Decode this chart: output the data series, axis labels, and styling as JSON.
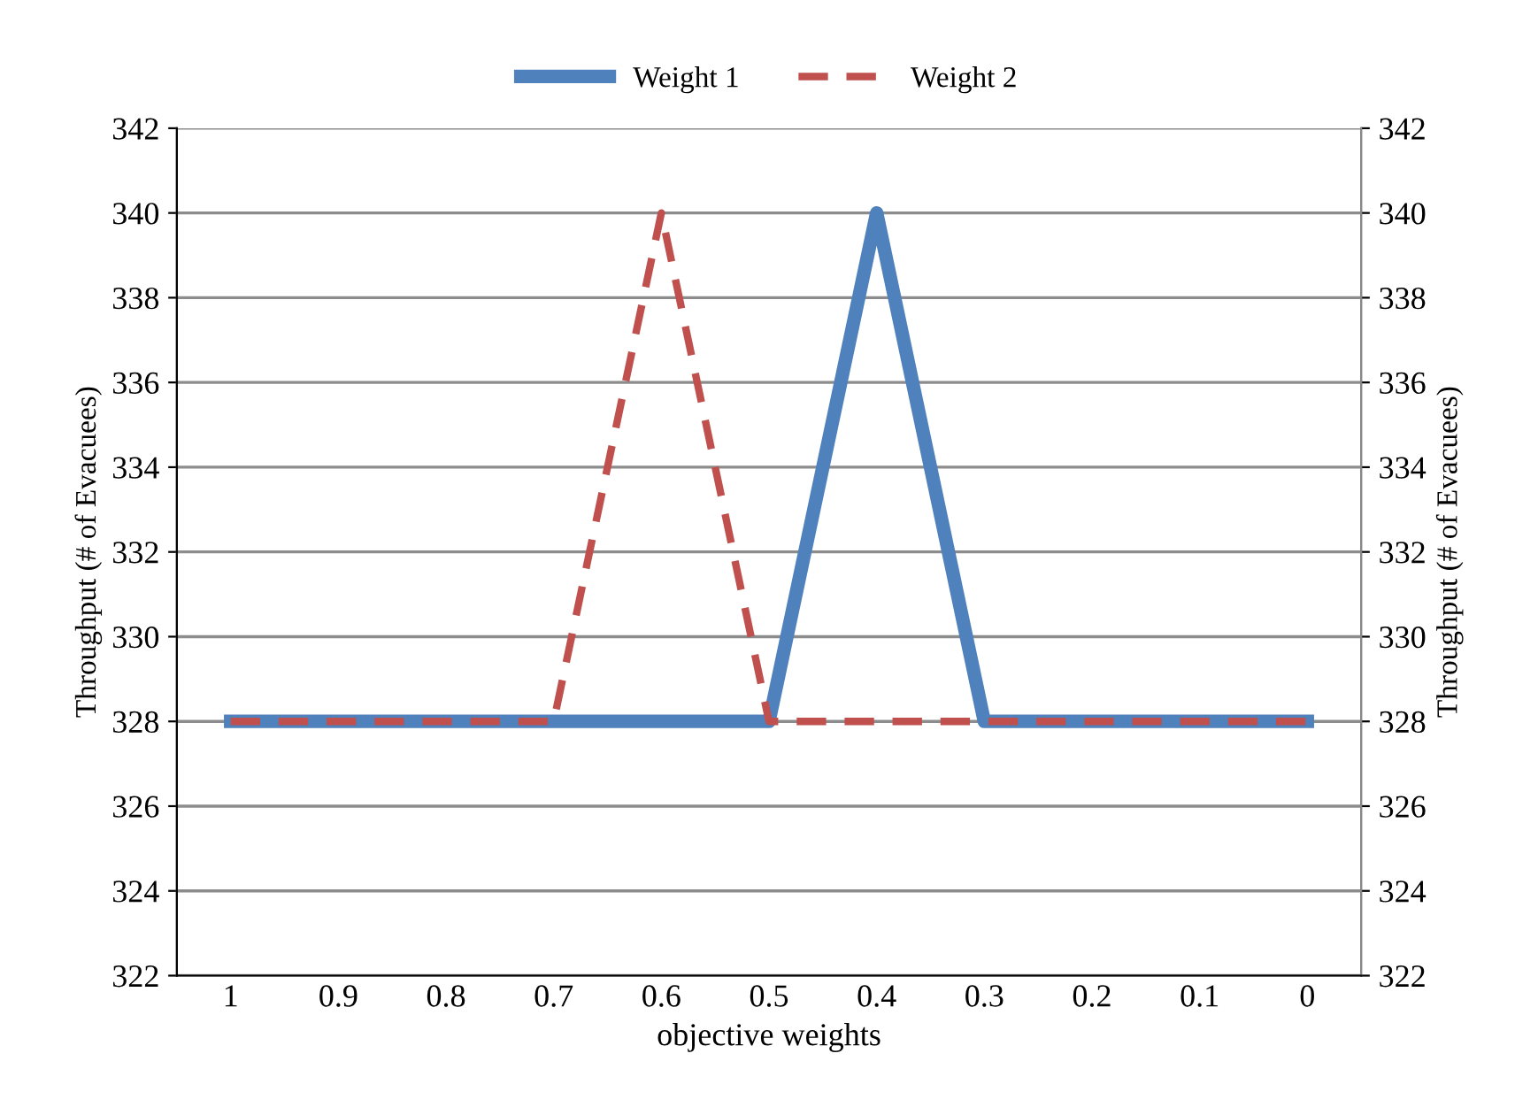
{
  "chart_data": {
    "type": "line",
    "xlabel": "objective weights",
    "ylabel": "Throughput (# of Evacuees)",
    "y2label": "Throughput (# of Evacuees)",
    "categories": [
      "1",
      "0.9",
      "0.8",
      "0.7",
      "0.6",
      "0.5",
      "0.4",
      "0.3",
      "0.2",
      "0.1",
      "0"
    ],
    "series": [
      {
        "name": "Weight 1",
        "color": "#4f81bd",
        "line_style": "solid",
        "values": [
          328,
          328,
          328,
          328,
          328,
          328,
          340,
          328,
          328,
          328,
          328
        ]
      },
      {
        "name": "Weight 2",
        "color": "#c0504d",
        "line_style": "dashed",
        "values": [
          328,
          328,
          328,
          328,
          340,
          328,
          328,
          328,
          328,
          328,
          328
        ]
      }
    ],
    "ylim": [
      322,
      342
    ],
    "yticks": [
      322,
      324,
      326,
      328,
      330,
      332,
      334,
      336,
      338,
      340,
      342
    ],
    "y2lim": [
      322,
      342
    ],
    "y2ticks": [
      322,
      324,
      326,
      328,
      330,
      332,
      334,
      336,
      338,
      340,
      342
    ],
    "grid": "y",
    "legend": "top",
    "marker": "none"
  }
}
